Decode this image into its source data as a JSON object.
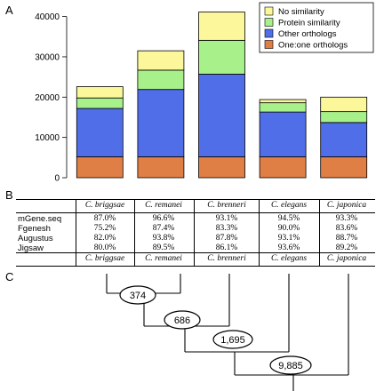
{
  "panels": {
    "a": "A",
    "b": "B",
    "c": "C"
  },
  "chart_data": {
    "type": "bar",
    "stacked": true,
    "categories": [
      "C. briggsae",
      "C. remanei",
      "C. brenneri",
      "C. elegans",
      "C. japonica"
    ],
    "series": [
      {
        "name": "One:one orthologs",
        "color": "#e07f45",
        "values": [
          5200,
          5200,
          5200,
          5200,
          5200
        ]
      },
      {
        "name": "Other orthologs",
        "color": "#4f6ee8",
        "values": [
          12000,
          16700,
          20500,
          11100,
          8500
        ]
      },
      {
        "name": "Protein similarity",
        "color": "#a7f08a",
        "values": [
          2600,
          4800,
          8400,
          2300,
          2700
        ]
      },
      {
        "name": "No similarity",
        "color": "#fbf79a",
        "values": [
          2800,
          4800,
          7000,
          800,
          3600
        ]
      }
    ],
    "ylim": [
      0,
      43000
    ],
    "yticks": [
      "0",
      "10000",
      "20000",
      "30000",
      "40000"
    ],
    "ytick_values": [
      0,
      10000,
      20000,
      30000,
      40000
    ],
    "legend": {
      "placement": "top-right",
      "order": [
        "No similarity",
        "Protein similarity",
        "Other orthologs",
        "One:one orthologs"
      ]
    },
    "grid": false
  },
  "table": {
    "species": [
      "C. briggsae",
      "C. remanei",
      "C. brenneri",
      "C. elegans",
      "C. japonica"
    ],
    "rows": [
      {
        "name": "mGene.seq",
        "values": [
          "87.0%",
          "96.6%",
          "93.1%",
          "94.5%",
          "93.3%"
        ]
      },
      {
        "name": "Fgenesh",
        "values": [
          "75.2%",
          "87.4%",
          "83.3%",
          "90.0%",
          "83.6%"
        ]
      },
      {
        "name": "Augustus",
        "values": [
          "82.0%",
          "93.8%",
          "87.8%",
          "93.1%",
          "88.7%"
        ]
      },
      {
        "name": "Jigsaw",
        "values": [
          "80.0%",
          "89.5%",
          "86.1%",
          "93.6%",
          "89.2%"
        ]
      }
    ]
  },
  "tree": {
    "nodes": [
      "374",
      "686",
      "1,695",
      "9,885"
    ]
  }
}
